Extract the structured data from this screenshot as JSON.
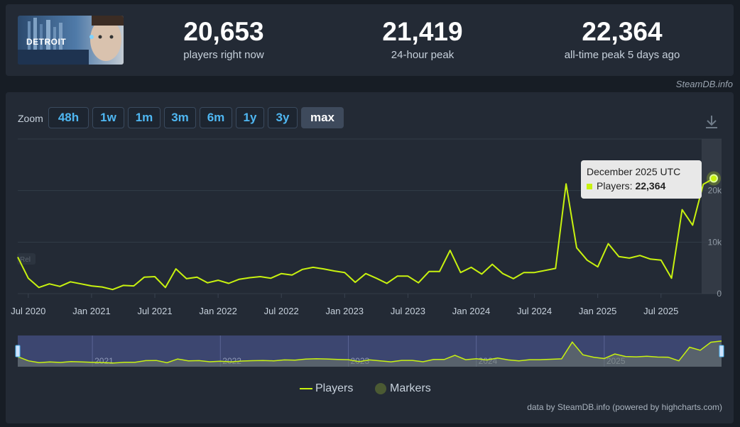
{
  "game": {
    "logo_text": "DETROIT"
  },
  "stats": [
    {
      "value": "20,653",
      "label": "players right now"
    },
    {
      "value": "21,419",
      "label": "24-hour peak"
    },
    {
      "value": "22,364",
      "label": "all-time peak 5 days ago"
    }
  ],
  "credit_top": "SteamDB.info",
  "zoom": {
    "label": "Zoom",
    "buttons": [
      "48h",
      "1w",
      "1m",
      "3m",
      "6m",
      "1y",
      "3y",
      "max"
    ],
    "active": "max"
  },
  "tooltip": {
    "title": "December 2025 UTC",
    "series_label": "Players: ",
    "value": "22,364"
  },
  "marker_label": "Rel",
  "legend": {
    "players": "Players",
    "markers": "Markers"
  },
  "credit_bottom": "data by SteamDB.info (powered by highcharts.com)",
  "colors": {
    "line": "#c8f20f",
    "accent": "#4fb7f2",
    "marker": "#4b5a33"
  },
  "chart_data": {
    "type": "line",
    "title": "",
    "xlabel": "",
    "ylabel": "",
    "ylim": [
      0,
      30000
    ],
    "yticks": [
      0,
      10000,
      20000
    ],
    "ytick_labels": [
      "0",
      "10k",
      "20k"
    ],
    "xtick_labels": [
      "Jul 2020",
      "Jan 2021",
      "Jul 2021",
      "Jan 2022",
      "Jul 2022",
      "Jan 2023",
      "Jul 2023",
      "Jan 2024",
      "Jul 2024",
      "Jan 2025",
      "Jul 2025"
    ],
    "navigator_labels": [
      "2021",
      "2022",
      "2023",
      "2024",
      "2025"
    ],
    "series": [
      {
        "name": "Players",
        "x": [
          "2020-06",
          "2020-07",
          "2020-08",
          "2020-09",
          "2020-10",
          "2020-11",
          "2020-12",
          "2021-01",
          "2021-02",
          "2021-03",
          "2021-04",
          "2021-05",
          "2021-06",
          "2021-07",
          "2021-08",
          "2021-09",
          "2021-10",
          "2021-11",
          "2021-12",
          "2022-01",
          "2022-02",
          "2022-03",
          "2022-04",
          "2022-05",
          "2022-06",
          "2022-07",
          "2022-08",
          "2022-09",
          "2022-10",
          "2022-11",
          "2022-12",
          "2023-01",
          "2023-02",
          "2023-03",
          "2023-04",
          "2023-05",
          "2023-06",
          "2023-07",
          "2023-08",
          "2023-09",
          "2023-10",
          "2023-11",
          "2023-12",
          "2024-01",
          "2024-02",
          "2024-03",
          "2024-04",
          "2024-05",
          "2024-06",
          "2024-07",
          "2024-08",
          "2024-09",
          "2024-10",
          "2024-11",
          "2024-12",
          "2025-01",
          "2025-02",
          "2025-03",
          "2025-04",
          "2025-05",
          "2025-06",
          "2025-07",
          "2025-08",
          "2025-09",
          "2025-10",
          "2025-11",
          "2025-12"
        ],
        "values": [
          7100,
          3000,
          1200,
          1900,
          1400,
          2300,
          1900,
          1500,
          1300,
          800,
          1600,
          1500,
          3200,
          3300,
          1200,
          4800,
          2900,
          3200,
          2100,
          2600,
          2000,
          2800,
          3100,
          3300,
          3000,
          3900,
          3600,
          4700,
          5100,
          4800,
          4400,
          4100,
          2200,
          3900,
          3000,
          2000,
          3400,
          3400,
          2100,
          4300,
          4300,
          8400,
          4100,
          5100,
          3800,
          5700,
          3900,
          2900,
          4100,
          4100,
          4500,
          4900,
          21300,
          8900,
          6500,
          5200,
          9700,
          7200,
          6900,
          7400,
          6700,
          6500,
          3000,
          16300,
          13300,
          21200,
          22364
        ]
      }
    ]
  }
}
